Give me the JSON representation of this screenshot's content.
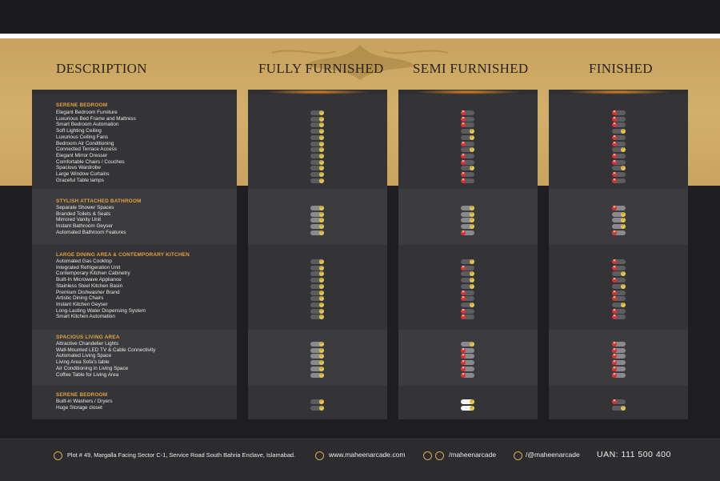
{
  "headers": {
    "description": "DESCRIPTION",
    "fully": "FULLY FURNISHED",
    "semi": "SEMI FURNISHED",
    "finished": "FINISHED"
  },
  "sections": [
    {
      "title": "SERENE BEDROOM",
      "items": [
        {
          "label": "Elegant Bedroom Furniture",
          "fully": true,
          "semi": false,
          "finished": false
        },
        {
          "label": "Luxurious Bed Frame and Mattress",
          "fully": true,
          "semi": false,
          "finished": false
        },
        {
          "label": "Smart Bedroom Automation",
          "fully": true,
          "semi": false,
          "finished": false
        },
        {
          "label": "Soft Lighting Ceiling",
          "fully": true,
          "semi": true,
          "finished": true
        },
        {
          "label": "Luxurious Ceiling Fans",
          "fully": true,
          "semi": true,
          "finished": false
        },
        {
          "label": "Bedroom Air Conditioning",
          "fully": true,
          "semi": false,
          "finished": false
        },
        {
          "label": "Connected Terrace Access",
          "fully": true,
          "semi": true,
          "finished": true
        },
        {
          "label": "Elegant Mirror Dresser",
          "fully": true,
          "semi": false,
          "finished": false
        },
        {
          "label": "Comfortable Chairs / Couches",
          "fully": true,
          "semi": false,
          "finished": false
        },
        {
          "label": "Spacious Wardrobe",
          "fully": true,
          "semi": true,
          "finished": true
        },
        {
          "label": "Large Window Curtains",
          "fully": true,
          "semi": false,
          "finished": false
        },
        {
          "label": "Graceful Table lamps",
          "fully": true,
          "semi": false,
          "finished": false
        }
      ]
    },
    {
      "title": "STYLISH ATTACHED BATHROOM",
      "items": [
        {
          "label": "Separate Shower Spaces",
          "fully": true,
          "semi": true,
          "finished": false
        },
        {
          "label": "Branded Toilets & Seats",
          "fully": true,
          "semi": true,
          "finished": true
        },
        {
          "label": "Mirrored Vanity Unit",
          "fully": true,
          "semi": true,
          "finished": true
        },
        {
          "label": "Instant Bathroom Geyser",
          "fully": true,
          "semi": true,
          "finished": true
        },
        {
          "label": "Automated Bathroom Features",
          "fully": true,
          "semi": false,
          "finished": false
        }
      ]
    },
    {
      "title": "LARGE DINING AREA & CONTEMPORARY KITCHEN",
      "items": [
        {
          "label": "Automated Gas Cooktop",
          "fully": true,
          "semi": true,
          "finished": false
        },
        {
          "label": "Integrated Refrigeration Unit",
          "fully": true,
          "semi": false,
          "finished": false
        },
        {
          "label": "Contemporary Kitchen Cabinetry",
          "fully": true,
          "semi": true,
          "finished": true
        },
        {
          "label": "Built-In Microwave Appliance",
          "fully": true,
          "semi": true,
          "finished": false
        },
        {
          "label": "Stainless Steel Kitchen Basin",
          "fully": true,
          "semi": true,
          "finished": true
        },
        {
          "label": "Premium Dishwasher Brand",
          "fully": true,
          "semi": false,
          "finished": false
        },
        {
          "label": "Artistic Dining Chairs",
          "fully": true,
          "semi": false,
          "finished": false
        },
        {
          "label": "Instant Kitchen Geyser",
          "fully": true,
          "semi": true,
          "finished": true
        },
        {
          "label": "Long-Lasting Water Dispensing System",
          "fully": true,
          "semi": false,
          "finished": false
        },
        {
          "label": "Smart Kitchen Automation",
          "fully": true,
          "semi": false,
          "finished": false
        }
      ]
    },
    {
      "title": "SPACIOUS LIVING AREA",
      "items": [
        {
          "label": "Attractive Chandelier Lights",
          "fully": true,
          "semi": true,
          "finished": false
        },
        {
          "label": "Wall-Mounted LED TV & Cable Connectivity",
          "fully": true,
          "semi": false,
          "finished": false
        },
        {
          "label": "Automated Living Space",
          "fully": true,
          "semi": false,
          "finished": false
        },
        {
          "label": "Living Area Sofa's table",
          "fully": true,
          "semi": false,
          "finished": false
        },
        {
          "label": "Air Conditioning in Living Space",
          "fully": true,
          "semi": false,
          "finished": false
        },
        {
          "label": "Coffee Table for Living Area",
          "fully": true,
          "semi": false,
          "finished": false
        }
      ]
    },
    {
      "title": "SERENE BEDROOM",
      "items": [
        {
          "label": "Built-in Washers / Dryers",
          "fully": true,
          "semi": true,
          "finished": false
        },
        {
          "label": "Huge Storage closet",
          "fully": true,
          "semi": true,
          "finished": true
        }
      ]
    }
  ],
  "footer": {
    "address": "Plot # 49, Margalla Facing Sector C-1, Service Road South Bahria Enclave, Islamabad.",
    "website": "www.maheenarcade.com",
    "social1": "/maheenarcade",
    "social2": "/@maheenarcade",
    "uan": "UAN: 111 500 400"
  },
  "colors": {
    "gold": "#d3b06a",
    "yes": "#e7c34e",
    "no": "#d8312a",
    "section_title": "#e0a340"
  }
}
